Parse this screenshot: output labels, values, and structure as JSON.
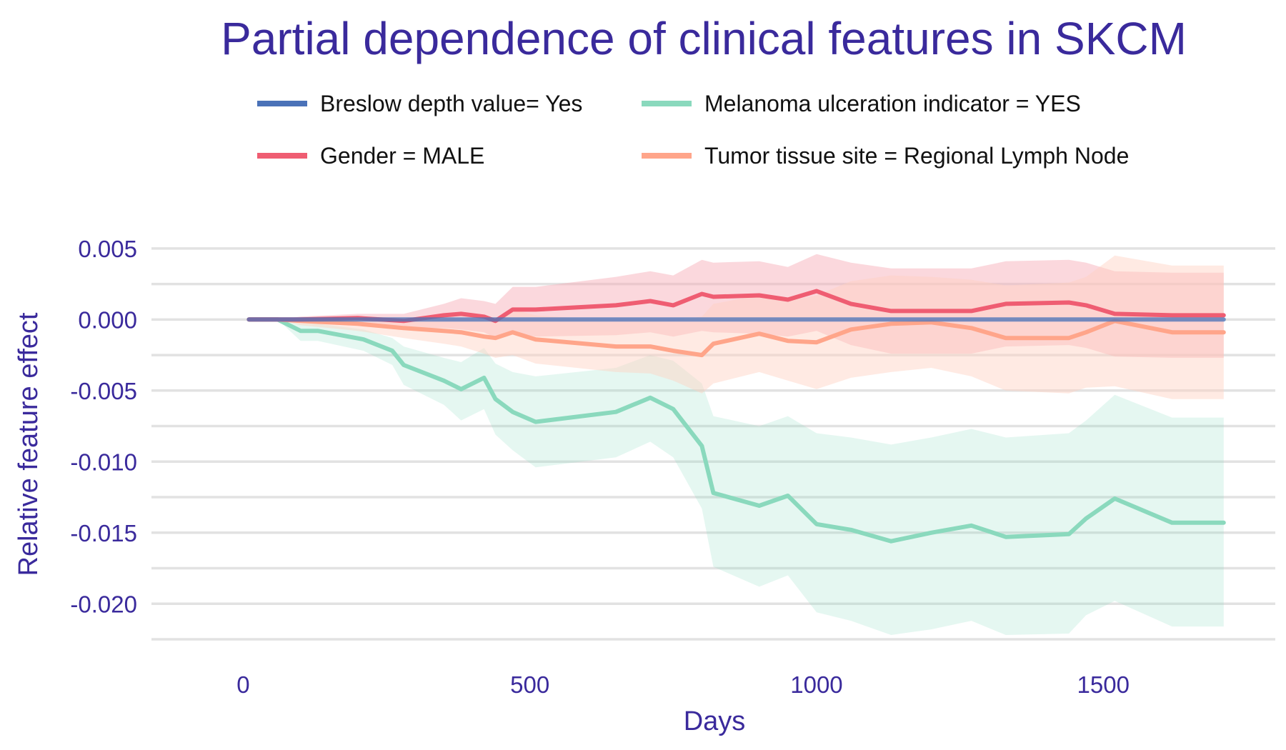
{
  "chart_data": {
    "type": "line",
    "title": "Partial dependence of clinical features in SKCM",
    "xlabel": "Days",
    "ylabel": "Relative feature effect",
    "xlim": [
      -160,
      1800
    ],
    "ylim": [
      -0.0225,
      0.0065
    ],
    "x_ticks": [
      0,
      500,
      1000,
      1500
    ],
    "x_tick_labels": [
      "0",
      "500",
      "1000",
      "1500"
    ],
    "y_ticks": [
      0.005,
      0.0,
      -0.005,
      -0.01,
      -0.015,
      -0.02
    ],
    "y_tick_labels": [
      "0.005",
      "0.000",
      "-0.005",
      "-0.010",
      "-0.015",
      "-0.020"
    ],
    "y_minor_ticks": [
      0.0025,
      -0.0025,
      -0.0075,
      -0.0125,
      -0.0175,
      -0.0225
    ],
    "grid": true,
    "legend_position": "top",
    "series": [
      {
        "name": "Breslow depth value= Yes",
        "color": "#4a72b8",
        "band_color": "#4a72b8",
        "x": [
          10,
          60,
          200,
          400,
          600,
          800,
          1000,
          1200,
          1400,
          1600,
          1710
        ],
        "y": [
          0,
          0,
          0,
          0,
          0,
          0,
          0,
          0,
          0,
          0,
          0
        ],
        "lower": [
          0,
          0,
          0,
          0,
          0,
          0,
          0,
          0,
          0,
          0,
          0
        ],
        "upper": [
          0,
          0,
          0,
          0,
          0,
          0,
          0,
          0,
          0,
          0,
          0
        ]
      },
      {
        "name": "Melanoma ulceration indicator = YES",
        "color": "#8ad9bd",
        "band_color": "#8ad9bd",
        "x": [
          10,
          60,
          100,
          130,
          210,
          260,
          280,
          350,
          380,
          420,
          440,
          470,
          510,
          650,
          710,
          750,
          800,
          820,
          900,
          950,
          1000,
          1060,
          1130,
          1200,
          1270,
          1330,
          1440,
          1470,
          1520,
          1620,
          1710
        ],
        "y": [
          0,
          0,
          -0.0008,
          -0.0008,
          -0.0014,
          -0.0022,
          -0.0032,
          -0.0043,
          -0.0049,
          -0.0041,
          -0.0056,
          -0.0065,
          -0.0072,
          -0.0065,
          -0.0055,
          -0.0063,
          -0.0089,
          -0.0122,
          -0.0131,
          -0.0124,
          -0.0144,
          -0.0148,
          -0.0156,
          -0.015,
          -0.0145,
          -0.0153,
          -0.0151,
          -0.014,
          -0.0126,
          -0.0143,
          -0.0143
        ],
        "lower": [
          0,
          0,
          -0.0015,
          -0.0015,
          -0.0022,
          -0.0032,
          -0.0046,
          -0.006,
          -0.0071,
          -0.0063,
          -0.0081,
          -0.0092,
          -0.0104,
          -0.0097,
          -0.0086,
          -0.0097,
          -0.0133,
          -0.0174,
          -0.0188,
          -0.018,
          -0.0206,
          -0.0212,
          -0.0222,
          -0.0218,
          -0.0212,
          -0.0222,
          -0.0221,
          -0.0208,
          -0.0198,
          -0.0216,
          -0.0216
        ],
        "upper": [
          0,
          0,
          -0.0003,
          -0.0003,
          -0.0007,
          -0.0013,
          -0.0019,
          -0.0027,
          -0.003,
          -0.002,
          -0.0031,
          -0.0037,
          -0.004,
          -0.0034,
          -0.0025,
          -0.0029,
          -0.0045,
          -0.0068,
          -0.0075,
          -0.0068,
          -0.008,
          -0.0083,
          -0.0088,
          -0.0083,
          -0.0077,
          -0.0083,
          -0.008,
          -0.0071,
          -0.0053,
          -0.0069,
          -0.0069
        ]
      },
      {
        "name": "Gender = MALE",
        "color": "#ef5d72",
        "band_color": "#f7a9b4",
        "x": [
          10,
          60,
          100,
          200,
          280,
          350,
          380,
          420,
          440,
          470,
          510,
          650,
          710,
          750,
          800,
          820,
          900,
          950,
          1000,
          1060,
          1130,
          1200,
          1270,
          1330,
          1440,
          1470,
          1520,
          1620,
          1710
        ],
        "y": [
          0,
          0,
          0,
          0.0001,
          -0.0001,
          0.0003,
          0.0004,
          0.0002,
          -0.0001,
          0.0007,
          0.0007,
          0.001,
          0.0013,
          0.001,
          0.0018,
          0.0016,
          0.0017,
          0.0014,
          0.002,
          0.0011,
          0.0006,
          0.0006,
          0.0006,
          0.0011,
          0.0012,
          0.001,
          0.0004,
          0.0003,
          0.0003
        ],
        "lower": [
          0,
          0,
          -0.0002,
          -0.0002,
          -0.0006,
          -0.0006,
          -0.0007,
          -0.0009,
          -0.0013,
          -0.0009,
          -0.0012,
          -0.0011,
          -0.0009,
          -0.0012,
          -0.0008,
          -0.0009,
          -0.001,
          -0.0012,
          -0.0008,
          -0.0018,
          -0.0024,
          -0.0024,
          -0.0024,
          -0.0019,
          -0.0018,
          -0.002,
          -0.0026,
          -0.0027,
          -0.0027
        ],
        "upper": [
          0,
          0,
          0.0002,
          0.0004,
          0.0004,
          0.0011,
          0.0015,
          0.0013,
          0.0011,
          0.0023,
          0.0023,
          0.003,
          0.0034,
          0.0031,
          0.0042,
          0.004,
          0.0041,
          0.0037,
          0.0046,
          0.004,
          0.0036,
          0.0036,
          0.0036,
          0.0041,
          0.0042,
          0.004,
          0.0034,
          0.0033,
          0.0033
        ]
      },
      {
        "name": "Tumor tissue site = Regional Lymph Node",
        "color": "#ffa58a",
        "band_color": "#ffd1c2",
        "x": [
          10,
          60,
          100,
          200,
          280,
          350,
          380,
          420,
          440,
          470,
          510,
          650,
          710,
          750,
          800,
          820,
          900,
          950,
          1000,
          1060,
          1130,
          1200,
          1270,
          1330,
          1440,
          1470,
          1520,
          1620,
          1710
        ],
        "y": [
          0,
          0,
          -0.0001,
          -0.0003,
          -0.0006,
          -0.0008,
          -0.0009,
          -0.0012,
          -0.0013,
          -0.0009,
          -0.0014,
          -0.0019,
          -0.0019,
          -0.0022,
          -0.0025,
          -0.0017,
          -0.001,
          -0.0015,
          -0.0016,
          -0.0007,
          -0.0003,
          -0.0002,
          -0.0006,
          -0.0013,
          -0.0013,
          -0.0009,
          -0.0001,
          -0.0009,
          -0.0009
        ],
        "lower": [
          0,
          0,
          -0.0004,
          -0.0008,
          -0.0013,
          -0.0017,
          -0.0019,
          -0.0024,
          -0.0027,
          -0.0025,
          -0.0031,
          -0.0037,
          -0.0038,
          -0.0043,
          -0.0052,
          -0.0045,
          -0.0037,
          -0.0043,
          -0.0049,
          -0.0041,
          -0.0037,
          -0.0034,
          -0.004,
          -0.005,
          -0.0052,
          -0.0048,
          -0.0047,
          -0.0056,
          -0.0056
        ],
        "upper": [
          0,
          0,
          0.0001,
          0.0001,
          0.0001,
          0.0001,
          0.0001,
          0.0,
          0.0001,
          0.0007,
          0.0003,
          -0.0001,
          0.0,
          -0.0001,
          0.0002,
          0.0011,
          0.0017,
          0.0013,
          0.0017,
          0.0027,
          0.0031,
          0.003,
          0.0028,
          0.0024,
          0.0026,
          0.003,
          0.0045,
          0.0038,
          0.0038
        ]
      }
    ]
  }
}
